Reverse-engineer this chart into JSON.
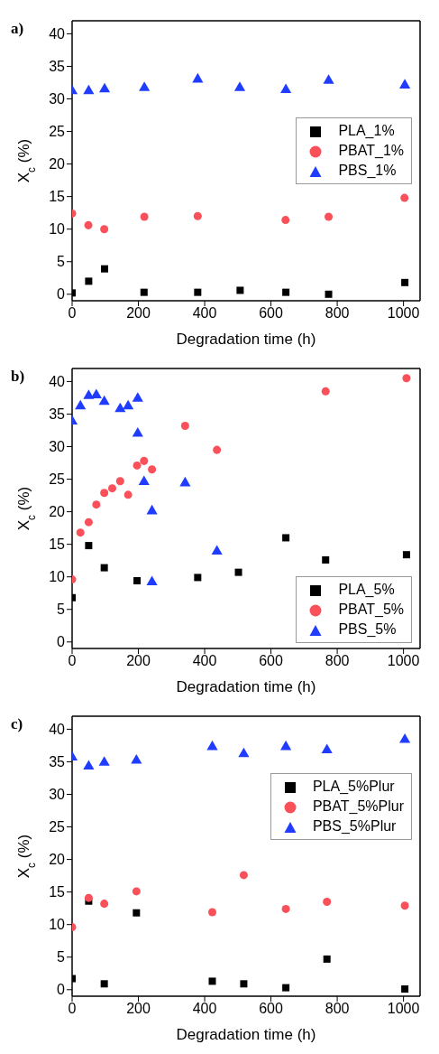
{
  "chart_data": [
    {
      "type": "scatter",
      "title": "a)",
      "xlabel": "Degradation time (h)",
      "ylabel": "X$_{c}$ (%)",
      "xlim": [
        0,
        1050
      ],
      "ylim": [
        -1,
        42
      ],
      "xticks": [
        0,
        200,
        400,
        600,
        800,
        1000
      ],
      "yticks": [
        0,
        5,
        10,
        15,
        20,
        25,
        30,
        35,
        40
      ],
      "legend": "right",
      "series": [
        {
          "name": "PLA_1%",
          "color": "#000000",
          "marker": "square",
          "x": [
            0,
            50,
            98,
            217,
            379,
            507,
            645,
            774,
            1004
          ],
          "values": [
            0.2,
            2.0,
            3.9,
            0.3,
            0.3,
            0.6,
            0.3,
            0,
            1.8
          ]
        },
        {
          "name": "PBAT_1%",
          "color": "#f9505a",
          "marker": "circle",
          "x": [
            0,
            49,
            97,
            218,
            379,
            644,
            774,
            1003
          ],
          "values": [
            12.4,
            10.6,
            10.0,
            11.9,
            12.0,
            11.4,
            11.9,
            14.8
          ]
        },
        {
          "name": "PBS_1%",
          "color": "#1f3cff",
          "marker": "triangle",
          "x": [
            0,
            50,
            98,
            218,
            379,
            506,
            645,
            774,
            1004
          ],
          "values": [
            31.2,
            31.2,
            31.5,
            31.7,
            33.0,
            31.7,
            31.4,
            32.8,
            32.1
          ]
        }
      ]
    },
    {
      "type": "scatter",
      "title": "b)",
      "xlabel": "Degradation time (h)",
      "ylabel": "X$_{c}$ (%)",
      "xlim": [
        0,
        1050
      ],
      "ylim": [
        -1,
        42
      ],
      "xticks": [
        0,
        200,
        400,
        600,
        800,
        1000
      ],
      "yticks": [
        0,
        5,
        10,
        15,
        20,
        25,
        30,
        35,
        40
      ],
      "legend": "bottom right",
      "series": [
        {
          "name": "PLA_5%",
          "color": "#000000",
          "marker": "square",
          "x": [
            0,
            50,
            97,
            196,
            379,
            502,
            645,
            765,
            1009
          ],
          "values": [
            6.8,
            14.8,
            11.4,
            9.4,
            9.9,
            10.7,
            16.0,
            12.6,
            13.4
          ]
        },
        {
          "name": "PBAT_5%",
          "color": "#f9505a",
          "marker": "circle",
          "x": [
            0,
            25,
            50,
            73,
            97,
            121,
            145,
            169,
            196,
            217,
            241,
            341,
            437,
            765,
            1009
          ],
          "values": [
            9.6,
            16.8,
            18.4,
            21.1,
            22.9,
            23.6,
            24.7,
            22.6,
            27.1,
            27.8,
            26.5,
            33.2,
            29.5,
            38.5,
            40.5
          ]
        },
        {
          "name": "PBS_5%",
          "color": "#1f3cff",
          "marker": "triangle",
          "x": [
            0,
            25,
            50,
            73,
            97,
            145,
            169,
            198,
            198,
            217,
            241,
            241,
            341,
            437
          ],
          "values": [
            33.9,
            36.2,
            37.8,
            37.9,
            36.9,
            35.8,
            36.2,
            37.4,
            32.0,
            24.6,
            20.1,
            9.2,
            24.4,
            13.9
          ]
        }
      ]
    },
    {
      "type": "scatter",
      "title": "c)",
      "xlabel": "Degradation time (h)",
      "ylabel": "X$_{c}$ (%)",
      "xlim": [
        0,
        1050
      ],
      "ylim": [
        -1,
        42
      ],
      "xticks": [
        0,
        200,
        400,
        600,
        800,
        1000
      ],
      "yticks": [
        0,
        5,
        10,
        15,
        20,
        25,
        30,
        35,
        40
      ],
      "legend": "top right",
      "series": [
        {
          "name": "PLA_5%Plur",
          "color": "#000000",
          "marker": "square",
          "x": [
            0,
            50,
            97,
            194,
            423,
            518,
            645,
            769,
            1004
          ],
          "values": [
            1.7,
            13.6,
            0.9,
            11.8,
            1.3,
            0.9,
            0.3,
            4.7,
            0.1
          ]
        },
        {
          "name": "PBAT_5%Plur",
          "color": "#f9505a",
          "marker": "circle",
          "x": [
            0,
            50,
            97,
            194,
            423,
            518,
            645,
            769,
            1004
          ],
          "values": [
            9.6,
            14.1,
            13.2,
            15.1,
            11.9,
            17.6,
            12.4,
            13.5,
            12.9
          ]
        },
        {
          "name": "PBS_5%Plur",
          "color": "#1f3cff",
          "marker": "triangle",
          "x": [
            0,
            50,
            97,
            194,
            423,
            518,
            645,
            769,
            1004
          ],
          "values": [
            35.7,
            34.3,
            34.9,
            35.2,
            37.3,
            36.2,
            37.3,
            36.8,
            38.4
          ]
        }
      ]
    }
  ]
}
